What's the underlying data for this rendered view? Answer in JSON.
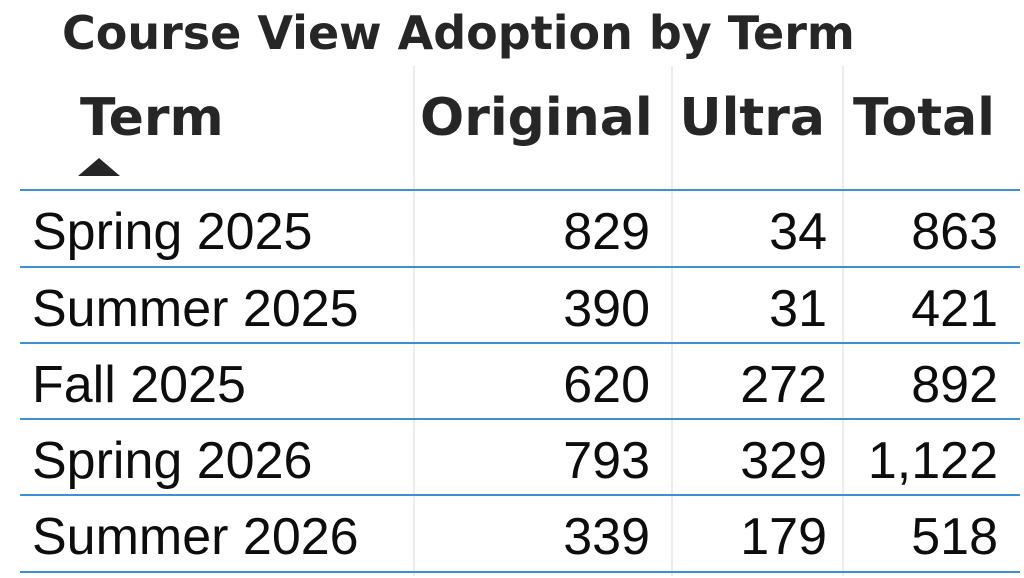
{
  "chart_data": {
    "type": "table",
    "title": "Course View Adoption by Term",
    "columns": [
      "Term",
      "Original",
      "Ultra",
      "Total"
    ],
    "sort": {
      "column": "Term",
      "direction": "ascending"
    },
    "rows": [
      {
        "term": "Spring 2025",
        "original": "829",
        "ultra": "34",
        "total": "863"
      },
      {
        "term": "Summer 2025",
        "original": "390",
        "ultra": "31",
        "total": "421"
      },
      {
        "term": "Fall 2025",
        "original": "620",
        "ultra": "272",
        "total": "892"
      },
      {
        "term": "Spring 2026",
        "original": "793",
        "ultra": "329",
        "total": "1,122"
      },
      {
        "term": "Summer 2026",
        "original": "339",
        "ultra": "179",
        "total": "518"
      }
    ]
  },
  "colors": {
    "row_separator": "#3d8fd6",
    "column_separator": "#ececec",
    "header_text": "#262626",
    "cell_text": "#0d0d0d"
  }
}
